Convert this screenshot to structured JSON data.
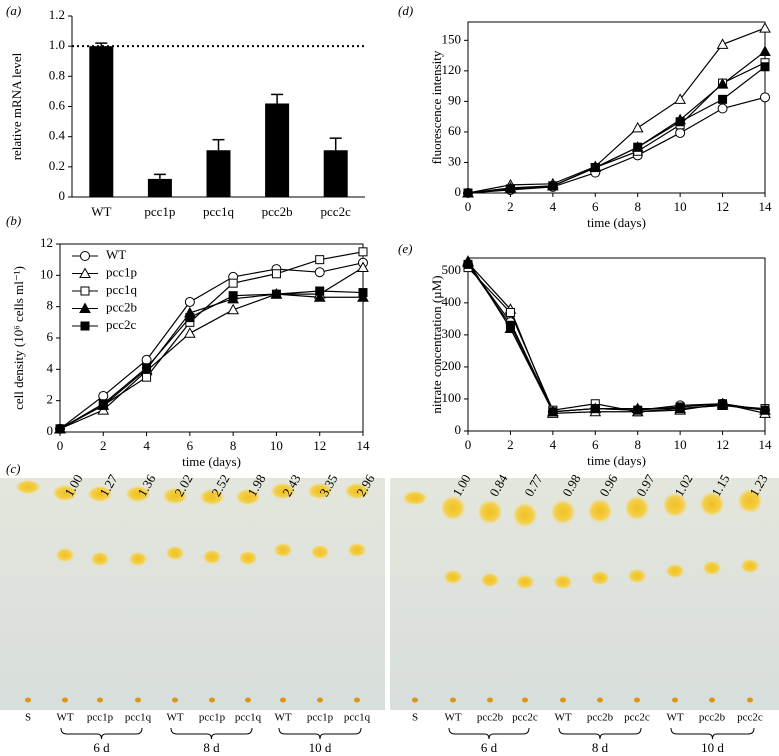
{
  "chart_data": [
    {
      "panel": "(a)",
      "type": "bar",
      "ylabel": "relative mRNA level",
      "categories": [
        "WT",
        "pcc1p",
        "pcc1q",
        "pcc2b",
        "pcc2c"
      ],
      "values": [
        1.0,
        0.12,
        0.31,
        0.62,
        0.31
      ],
      "errors": [
        0.02,
        0.03,
        0.07,
        0.06,
        0.08
      ],
      "color": "#000000",
      "reference_line": 1,
      "ylim": [
        0,
        1.2
      ],
      "yticks": [
        0,
        0.2,
        0.4,
        0.6,
        0.8,
        {
          "value": 1,
          "label": "1.0"
        },
        1.2
      ]
    },
    {
      "panel": "(b)",
      "type": "line",
      "xlabel": "time (days)",
      "ylabel": "cell density (10⁶ cells ml⁻¹)",
      "x": [
        0,
        2,
        4,
        6,
        8,
        10,
        12,
        14
      ],
      "xlim": [
        0,
        14
      ],
      "xticks": [
        0,
        2,
        4,
        6,
        8,
        10,
        12,
        14
      ],
      "ylim": [
        0,
        12
      ],
      "yticks": [
        0,
        2,
        4,
        6,
        8,
        10,
        12
      ],
      "legend": "upper left",
      "series": [
        {
          "name": "WT",
          "marker": "circle",
          "filled": false,
          "color": "#000000",
          "values": [
            0.2,
            2.3,
            4.6,
            8.3,
            9.9,
            10.4,
            10.2,
            10.8
          ]
        },
        {
          "name": "pcc1p",
          "marker": "triangle",
          "filled": false,
          "color": "#000000",
          "values": [
            0.2,
            1.4,
            3.9,
            6.3,
            7.8,
            8.8,
            8.8,
            10.5
          ]
        },
        {
          "name": "pcc1q",
          "marker": "square",
          "filled": false,
          "color": "#000000",
          "values": [
            0.2,
            1.7,
            3.5,
            7.0,
            9.5,
            10.1,
            11.0,
            11.5
          ]
        },
        {
          "name": "pcc2b",
          "marker": "triangle",
          "filled": true,
          "color": "#000000",
          "values": [
            0.2,
            1.7,
            4.0,
            7.6,
            8.5,
            8.8,
            8.6,
            8.6
          ]
        },
        {
          "name": "pcc2c",
          "marker": "square",
          "filled": true,
          "color": "#000000",
          "values": [
            0.2,
            1.8,
            4.1,
            7.3,
            8.7,
            8.8,
            9.0,
            8.9
          ]
        }
      ]
    },
    {
      "panel": "(d)",
      "type": "line",
      "xlabel": "time (days)",
      "ylabel": "fluorescence intensity",
      "x": [
        0,
        2,
        4,
        6,
        8,
        10,
        12,
        14
      ],
      "xlim": [
        0,
        14
      ],
      "xticks": [
        0,
        2,
        4,
        6,
        8,
        10,
        12,
        14
      ],
      "ylim": [
        0,
        168
      ],
      "yticks": [
        0,
        30,
        60,
        90,
        120,
        150
      ],
      "series": [
        {
          "marker": "circle",
          "filled": false,
          "color": "#000000",
          "values": [
            0,
            3,
            6,
            20,
            37,
            59,
            83,
            94
          ]
        },
        {
          "marker": "triangle",
          "filled": false,
          "color": "#000000",
          "values": [
            0,
            8,
            9,
            26,
            64,
            92,
            146,
            162
          ]
        },
        {
          "marker": "square",
          "filled": false,
          "color": "#000000",
          "values": [
            0,
            4,
            7,
            25,
            41,
            67,
            108,
            128
          ]
        },
        {
          "marker": "triangle",
          "filled": true,
          "color": "#000000",
          "values": [
            0,
            5,
            7,
            25,
            45,
            72,
            107,
            139
          ]
        },
        {
          "marker": "square",
          "filled": true,
          "color": "#000000",
          "values": [
            0,
            4,
            7,
            25,
            45,
            70,
            92,
            124
          ]
        }
      ]
    },
    {
      "panel": "(e)",
      "type": "line",
      "xlabel": "time (days)",
      "ylabel": "nitrate concentration (µM)",
      "x": [
        0,
        2,
        4,
        6,
        8,
        10,
        12,
        14
      ],
      "xlim": [
        0,
        14
      ],
      "xticks": [
        0,
        2,
        4,
        6,
        8,
        10,
        12,
        14
      ],
      "ylim": [
        0,
        540
      ],
      "yticks": [
        0,
        100,
        200,
        300,
        400,
        500
      ],
      "series": [
        {
          "marker": "circle",
          "filled": false,
          "color": "#000000",
          "values": [
            520,
            340,
            60,
            70,
            65,
            80,
            85,
            65
          ]
        },
        {
          "marker": "triangle",
          "filled": false,
          "color": "#000000",
          "values": [
            525,
            380,
            55,
            60,
            60,
            65,
            85,
            55
          ]
        },
        {
          "marker": "square",
          "filled": false,
          "color": "#000000",
          "values": [
            510,
            370,
            65,
            85,
            60,
            70,
            80,
            70
          ]
        },
        {
          "marker": "triangle",
          "filled": true,
          "color": "#000000",
          "values": [
            530,
            320,
            60,
            70,
            70,
            70,
            80,
            65
          ]
        },
        {
          "marker": "square",
          "filled": true,
          "color": "#000000",
          "values": [
            520,
            330,
            60,
            70,
            65,
            75,
            85,
            65
          ]
        }
      ]
    }
  ],
  "tlc": {
    "panel": "(c)",
    "plates": [
      {
        "values": [
          "1.00",
          "1.27",
          "1.36",
          "2.02",
          "2.52",
          "1.98",
          "2.43",
          "3.35",
          "2.96"
        ],
        "lanes": [
          "S",
          "WT",
          "pcc1p",
          "pcc1q",
          "WT",
          "pcc1p",
          "pcc1q",
          "WT",
          "pcc1p",
          "pcc1q"
        ],
        "groups": [
          "6 d",
          "8 d",
          "10 d"
        ]
      },
      {
        "values": [
          "1.00",
          "0.84",
          "0.77",
          "0.98",
          "0.96",
          "0.97",
          "1.02",
          "1.15",
          "1.23"
        ],
        "lanes": [
          "S",
          "WT",
          "pcc2b",
          "pcc2c",
          "WT",
          "pcc2b",
          "pcc2c",
          "WT",
          "pcc2b",
          "pcc2c"
        ],
        "groups": [
          "6 d",
          "8 d",
          "10 d"
        ]
      }
    ]
  }
}
